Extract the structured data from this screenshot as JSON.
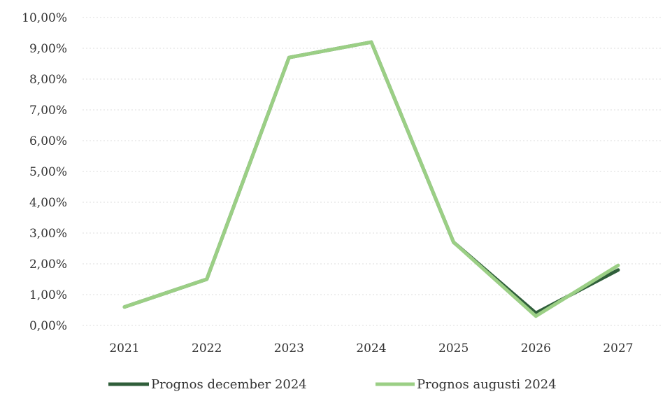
{
  "chart_data": {
    "type": "line",
    "title": "",
    "xlabel": "",
    "ylabel": "",
    "categories": [
      "2021",
      "2022",
      "2023",
      "2024",
      "2025",
      "2026",
      "2027"
    ],
    "ylim": [
      0,
      10
    ],
    "y_ticks": [
      "0,00%",
      "1,00%",
      "2,00%",
      "3,00%",
      "4,00%",
      "5,00%",
      "6,00%",
      "7,00%",
      "8,00%",
      "9,00%",
      "10,00%"
    ],
    "grid": true,
    "legend_position": "bottom",
    "series": [
      {
        "name": "Prognos december 2024",
        "color": "#2f5e3a",
        "values": [
          0.6,
          1.5,
          8.7,
          9.2,
          2.7,
          0.4,
          1.8
        ]
      },
      {
        "name": "Prognos augusti 2024",
        "color": "#9bcf85",
        "values": [
          0.6,
          1.5,
          8.7,
          9.2,
          2.7,
          0.3,
          1.95
        ]
      }
    ]
  }
}
